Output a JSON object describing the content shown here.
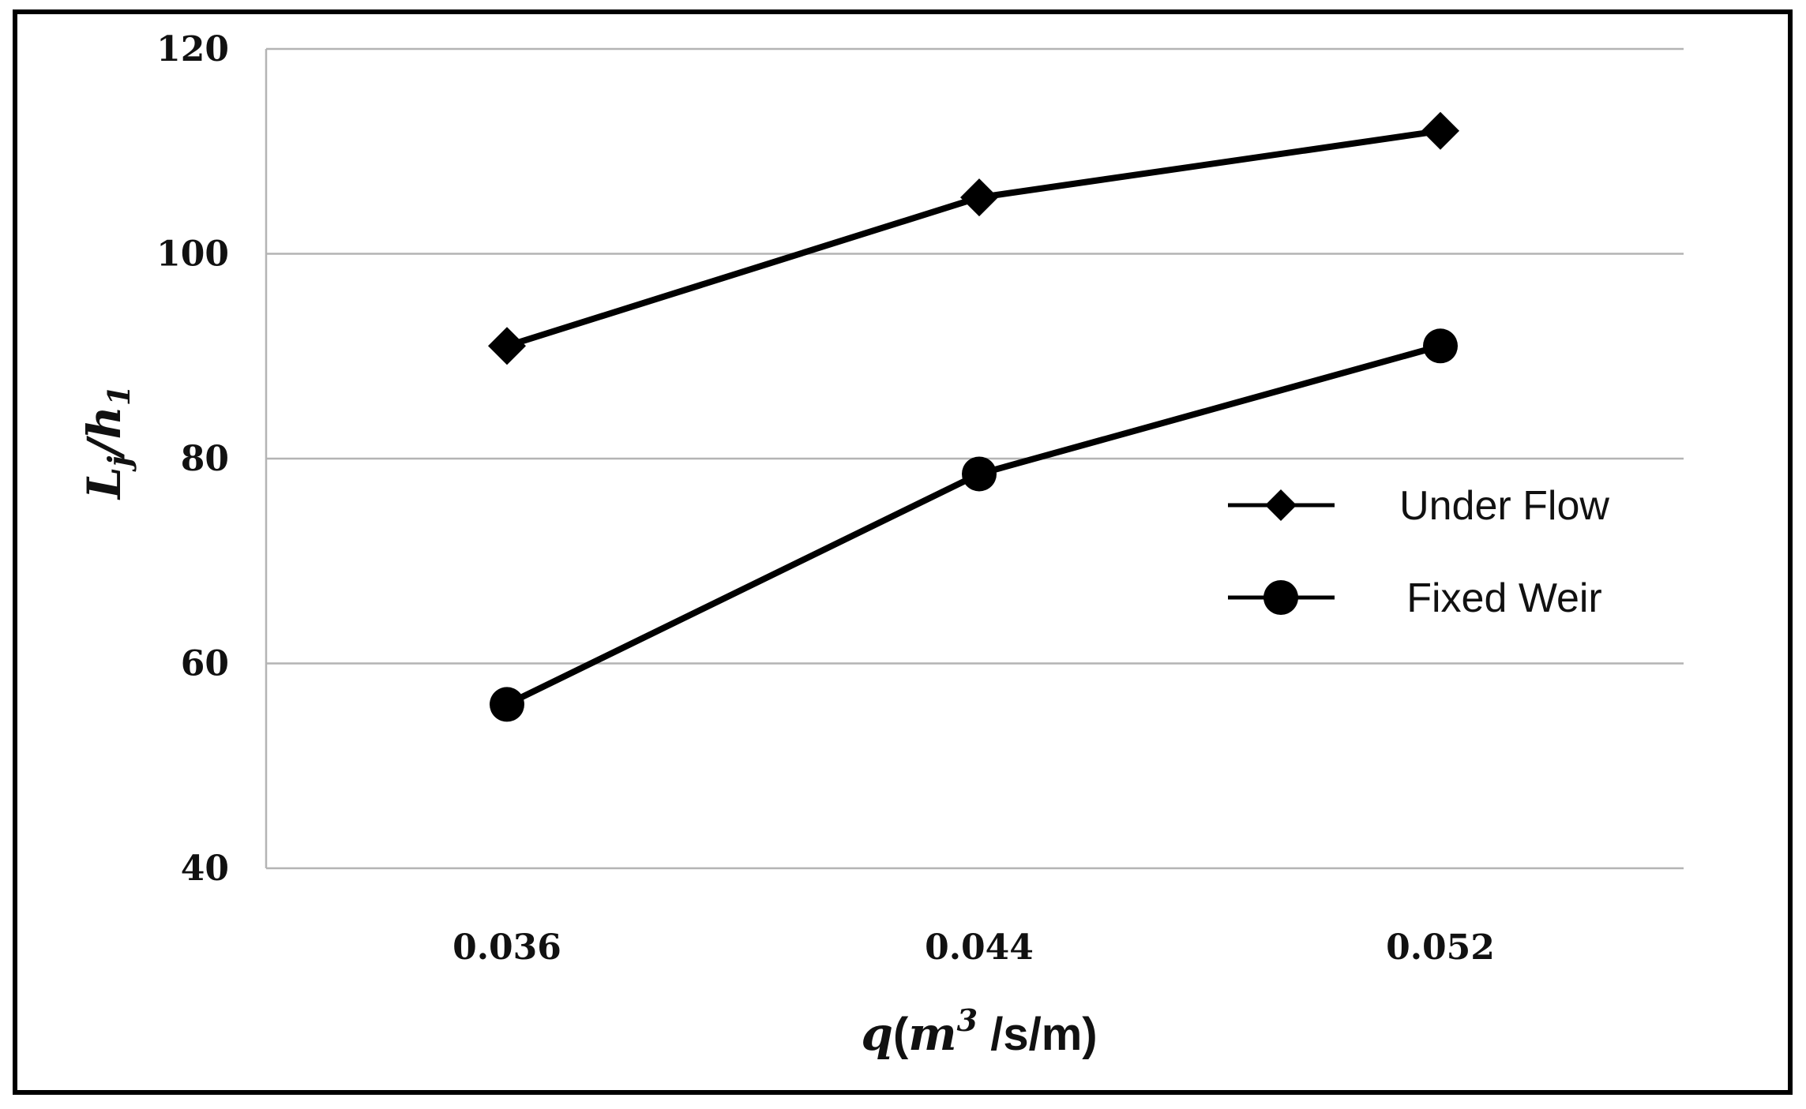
{
  "chart_data": {
    "type": "line",
    "categories": [
      "0.036",
      "0.044",
      "0.052"
    ],
    "series": [
      {
        "name": "Under Flow",
        "marker": "diamond",
        "values": [
          91,
          105.5,
          112
        ]
      },
      {
        "name": "Fixed Weir",
        "marker": "circle",
        "values": [
          56,
          78.5,
          91
        ]
      }
    ],
    "ylim": [
      40,
      120
    ],
    "yticks": [
      "40",
      "60",
      "80",
      "100",
      "120"
    ],
    "xlabel": {
      "var": "q",
      "open": "(",
      "unit": "m",
      "exp": "3",
      "rest": " /s/m)"
    },
    "ylabel": {
      "var": "L",
      "sub": "j",
      "slash": "/h",
      "sub2": "1"
    },
    "grid": true,
    "legend_position": "right",
    "colors": {
      "line": "#000000",
      "grid": "#b4b4b4"
    }
  }
}
